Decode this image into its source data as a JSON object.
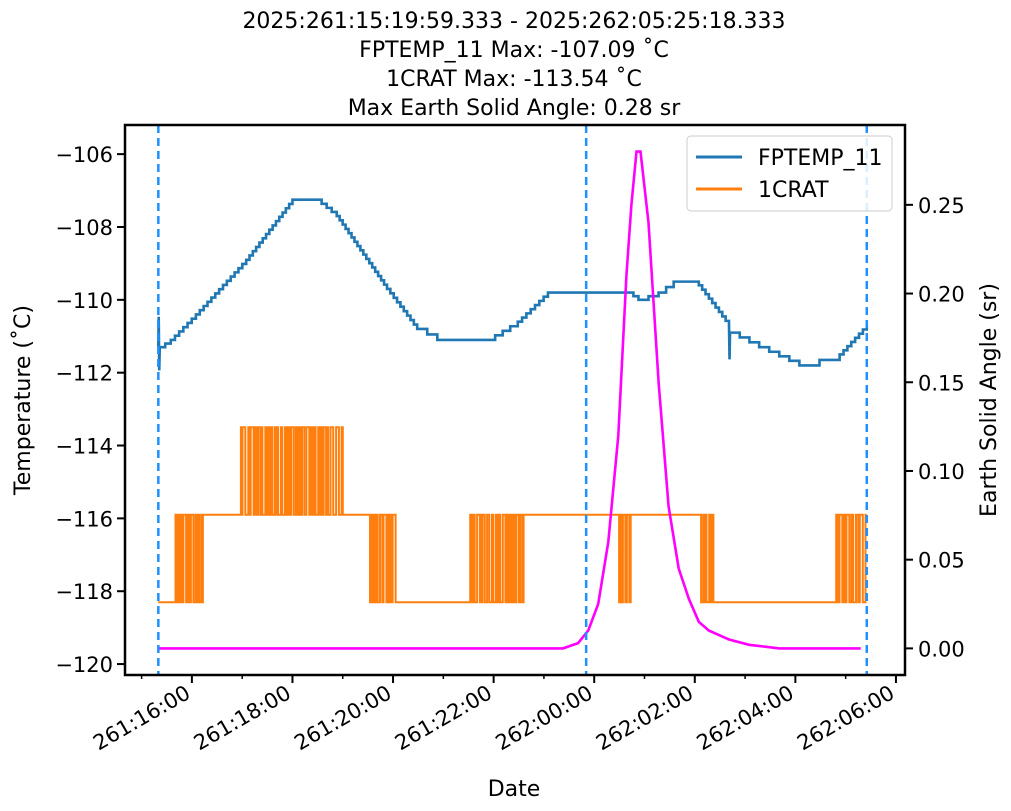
{
  "chart_data": {
    "type": "line",
    "title_lines": [
      "2025:261:15:19:59.333 - 2025:262:05:25:18.333",
      "FPTEMP_11 Max: -107.09 ˚C",
      "1CRAT Max: -113.54 ˚C",
      "Max Earth Solid Angle: 0.28 sr"
    ],
    "xlabel": "Date",
    "ylabel": "Temperature (˚C)",
    "y2label": "Earth Solid Angle (sr)",
    "x_units": "hours since 2025:261:00:00",
    "xlim": [
      14.67,
      30.18
    ],
    "ylim": [
      -120.3,
      -105.2
    ],
    "y2lim": [
      -0.015,
      0.295
    ],
    "x_ticks": [
      16,
      18,
      20,
      22,
      24,
      26,
      28,
      30
    ],
    "x_tick_labels": [
      "261:16:00",
      "261:18:00",
      "261:20:00",
      "261:22:00",
      "262:00:00",
      "262:02:00",
      "262:04:00",
      "262:06:00"
    ],
    "x_minor_ticks": [
      15,
      17,
      19,
      21,
      23,
      25,
      27,
      29
    ],
    "y_ticks": [
      -106,
      -108,
      -110,
      -112,
      -114,
      -116,
      -118,
      -120
    ],
    "y_tick_labels": [
      "−106",
      "−108",
      "−110",
      "−112",
      "−114",
      "−116",
      "−118",
      "−120"
    ],
    "y2_ticks": [
      0,
      0.05,
      0.1,
      0.15,
      0.2,
      0.25
    ],
    "y2_tick_labels": [
      "0.00",
      "0.05",
      "0.10",
      "0.15",
      "0.20",
      "0.25"
    ],
    "vlines": [
      15.333,
      23.84,
      29.42
    ],
    "legend": {
      "placement": "top-right",
      "entries": [
        "FPTEMP_11",
        "1CRAT"
      ]
    },
    "series": [
      {
        "name": "FPTEMP_11",
        "axis": "left",
        "color": "#1f77b4",
        "x": [
          15.33,
          15.34,
          15.35,
          15.36,
          15.58,
          16.08,
          17.08,
          18.0,
          18.48,
          18.88,
          19.88,
          20.48,
          20.88,
          21.88,
          22.48,
          23.08,
          24.68,
          24.88,
          25.28,
          25.58,
          26.08,
          26.68,
          26.69,
          26.7,
          27.28,
          28.08,
          28.88,
          29.42
        ],
        "y": [
          -111.3,
          -110.5,
          -111.9,
          -111.3,
          -111.1,
          -110.4,
          -108.9,
          -107.25,
          -107.25,
          -107.7,
          -109.7,
          -110.8,
          -111.1,
          -111.1,
          -110.6,
          -109.8,
          -109.8,
          -110.0,
          -109.8,
          -109.5,
          -109.6,
          -110.7,
          -111.6,
          -110.9,
          -111.3,
          -111.8,
          -111.5,
          -110.7
        ]
      },
      {
        "name": "1CRAT",
        "axis": "left",
        "color": "#ff7f0e",
        "levels": [
          -118.3,
          -115.9,
          -113.5
        ],
        "segments": [
          [
            15.33,
            15.64,
            "const",
            -118.3
          ],
          [
            15.64,
            16.22,
            "toggle",
            -118.3,
            -115.9
          ],
          [
            16.22,
            16.94,
            "const",
            -115.9
          ],
          [
            16.94,
            19.0,
            "toggle",
            -115.9,
            -113.5
          ],
          [
            19.0,
            19.5,
            "const",
            -115.9
          ],
          [
            19.5,
            20.08,
            "toggle",
            -115.9,
            -118.3
          ],
          [
            20.08,
            21.48,
            "const",
            -118.3
          ],
          [
            21.48,
            22.62,
            "toggle",
            -118.3,
            -115.9
          ],
          [
            22.62,
            24.48,
            "const",
            -115.9
          ],
          [
            24.48,
            24.76,
            "toggle",
            -115.9,
            -118.3
          ],
          [
            24.76,
            26.08,
            "const",
            -115.9
          ],
          [
            26.08,
            26.38,
            "toggle",
            -115.9,
            -118.3
          ],
          [
            26.38,
            28.78,
            "const",
            -118.3
          ],
          [
            28.78,
            29.42,
            "toggle",
            -118.3,
            -115.9
          ]
        ]
      },
      {
        "name": "Earth Solid Angle",
        "axis": "right",
        "color": "#ff00ff",
        "x": [
          15.33,
          23.38,
          23.68,
          23.88,
          24.08,
          24.28,
          24.48,
          24.64,
          24.74,
          24.84,
          24.92,
          25.08,
          25.28,
          25.48,
          25.68,
          25.88,
          26.08,
          26.28,
          26.68,
          27.08,
          27.68,
          29.3
        ],
        "y": [
          0,
          0,
          0.003,
          0.01,
          0.025,
          0.06,
          0.12,
          0.21,
          0.25,
          0.28,
          0.28,
          0.24,
          0.15,
          0.08,
          0.045,
          0.028,
          0.015,
          0.01,
          0.005,
          0.002,
          0,
          0
        ]
      }
    ]
  }
}
